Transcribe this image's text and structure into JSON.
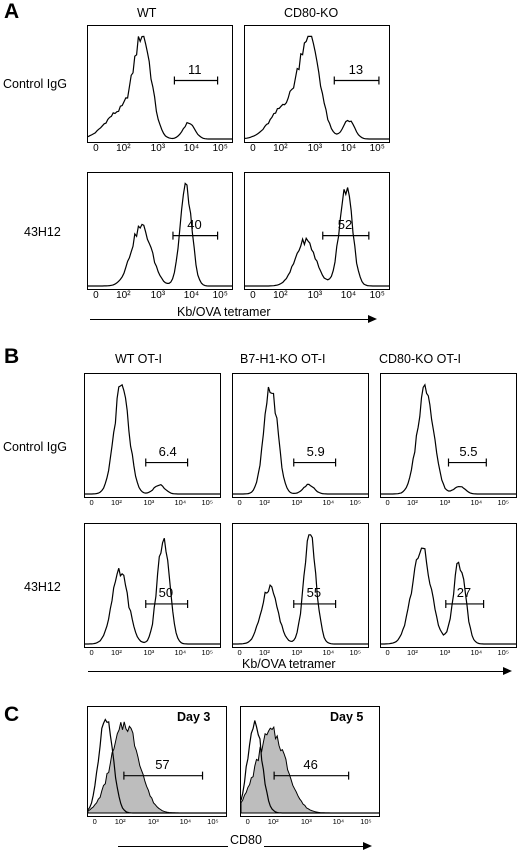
{
  "panel_A": {
    "letter": "A",
    "columns": [
      "WT",
      "CD80-KO"
    ],
    "rows": [
      "Control IgG",
      "43H12"
    ],
    "x_ticks": [
      "0",
      "10²",
      "10³",
      "10⁴",
      "10⁵"
    ],
    "gates": [
      [
        "11",
        "13"
      ],
      [
        "40",
        "52"
      ]
    ],
    "axis_label": "Kb/OVA tetramer"
  },
  "panel_B": {
    "letter": "B",
    "columns": [
      "WT OT-I",
      "B7-H1-KO OT-I",
      "CD80-KO OT-I"
    ],
    "rows": [
      "Control IgG",
      "43H12"
    ],
    "x_ticks": [
      "0",
      "10²",
      "10³",
      "10⁴",
      "10⁵"
    ],
    "gates": [
      [
        "6.4",
        "5.9",
        "5.5"
      ],
      [
        "50",
        "55",
        "27"
      ]
    ],
    "axis_label": "Kb/OVA tetramer"
  },
  "panel_C": {
    "letter": "C",
    "plots": [
      {
        "day": "Day 3",
        "gate": "57"
      },
      {
        "day": "Day 5",
        "gate": "46"
      }
    ],
    "x_ticks": [
      "0",
      "10²",
      "10³",
      "10⁴",
      "10⁵"
    ],
    "axis_label": "CD80"
  }
}
